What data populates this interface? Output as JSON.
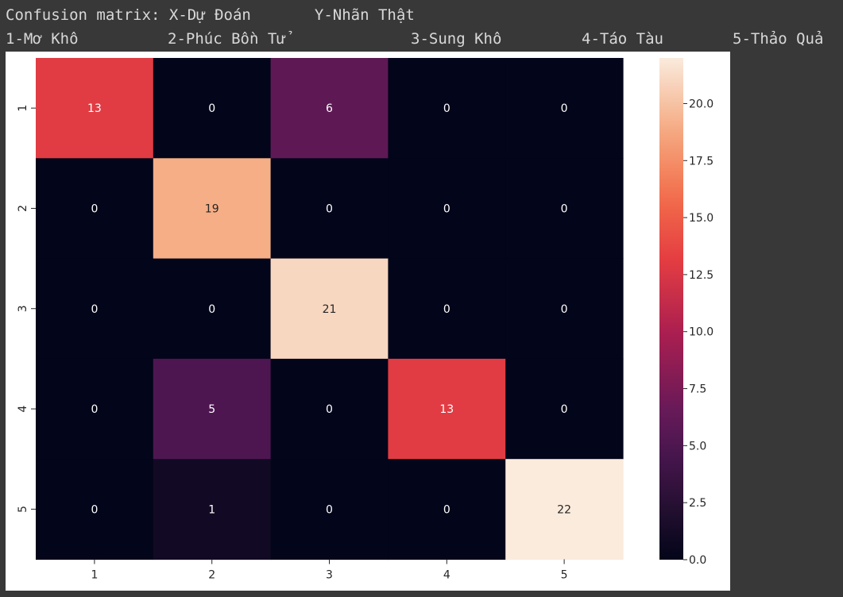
{
  "output": {
    "line1": "Confusion matrix: X-Dự Đoán       Y-Nhãn Thật",
    "legend": [
      {
        "id": "1",
        "text": "1-Mơ Khô"
      },
      {
        "id": "2",
        "text": "2-Phúc Bồn Tử"
      },
      {
        "id": "3",
        "text": "3-Sung Khô"
      },
      {
        "id": "4",
        "text": "4-Táo Tàu"
      },
      {
        "id": "5",
        "text": "5-Thảo Quả"
      }
    ]
  },
  "chart_data": {
    "type": "heatmap",
    "title": "",
    "xlabel": "",
    "ylabel": "",
    "x_categories": [
      "1",
      "2",
      "3",
      "4",
      "5"
    ],
    "y_categories": [
      "1",
      "2",
      "3",
      "4",
      "5"
    ],
    "values": [
      [
        13,
        0,
        6,
        0,
        0
      ],
      [
        0,
        19,
        0,
        0,
        0
      ],
      [
        0,
        0,
        21,
        0,
        0
      ],
      [
        0,
        5,
        0,
        13,
        0
      ],
      [
        0,
        1,
        0,
        0,
        22
      ]
    ],
    "annotations": true,
    "colormap": "rocket",
    "colorbar": {
      "range": [
        0,
        22
      ],
      "ticks": [
        0.0,
        2.5,
        5.0,
        7.5,
        10.0,
        12.5,
        15.0,
        17.5,
        20.0
      ],
      "tick_labels": [
        "0.0",
        "2.5",
        "5.0",
        "7.5",
        "10.0",
        "12.5",
        "15.0",
        "17.5",
        "20.0"
      ],
      "position": "right"
    }
  }
}
